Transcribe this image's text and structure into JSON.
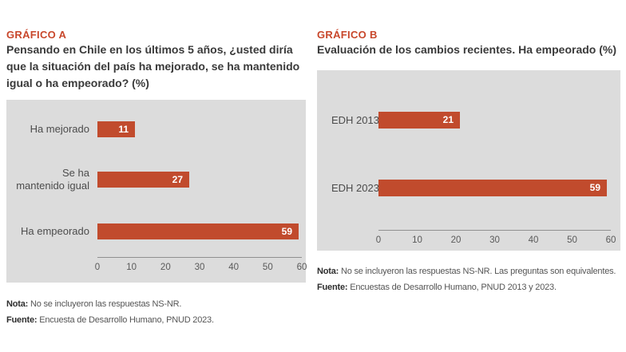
{
  "colors": {
    "bar": "#c14b2d",
    "kicker": "#c8472b",
    "panel": "#dcdcdc",
    "title_text": "#3a3a3a",
    "axis_line": "#909090",
    "tick_text": "#5a5a5a",
    "label_text": "#4c4c4c",
    "value_text": "#ffffff",
    "note_text": "#555555"
  },
  "panels": [
    {
      "kicker": "GRÁFICO A",
      "nota_label": "Nota:",
      "nota": "No se incluyeron las respuestas NS-NR.",
      "fuente_label": "Fuente:",
      "fuente": "Encuesta de Desarrollo Humano, PNUD 2023."
    },
    {
      "kicker": "GRÁFICO B",
      "nota_label": "Nota:",
      "nota": "No se incluyeron las respuestas NS-NR. Las preguntas son equivalentes.",
      "fuente_label": "Fuente:",
      "fuente": "Encuestas de Desarrollo Humano, PNUD 2013 y 2023."
    }
  ],
  "chart_data": [
    {
      "id": "grafico-a",
      "type": "bar",
      "orientation": "horizontal",
      "title": "Pensando en Chile en los últimos 5 años, ¿usted diría\nque la situación del país ha mejorado, se ha mantenido\nigual o ha empeorado? (%)",
      "categories": [
        "Ha mejorado",
        "Se ha\nmantenido igual",
        "Ha empeorado"
      ],
      "values": [
        11,
        27,
        59
      ],
      "xlim": [
        0,
        60
      ],
      "xticks": [
        0,
        10,
        20,
        30,
        40,
        50,
        60
      ],
      "value_label_position": "inside-end",
      "grid": false,
      "legend": "none"
    },
    {
      "id": "grafico-b",
      "type": "bar",
      "orientation": "horizontal",
      "title": "Evaluación de los cambios recientes. Ha empeorado (%)",
      "categories": [
        "EDH 2013",
        "EDH 2023"
      ],
      "values": [
        21,
        59
      ],
      "xlim": [
        0,
        60
      ],
      "xticks": [
        0,
        10,
        20,
        30,
        40,
        50,
        60
      ],
      "value_label_position": "inside-end",
      "grid": false,
      "legend": "none"
    }
  ]
}
